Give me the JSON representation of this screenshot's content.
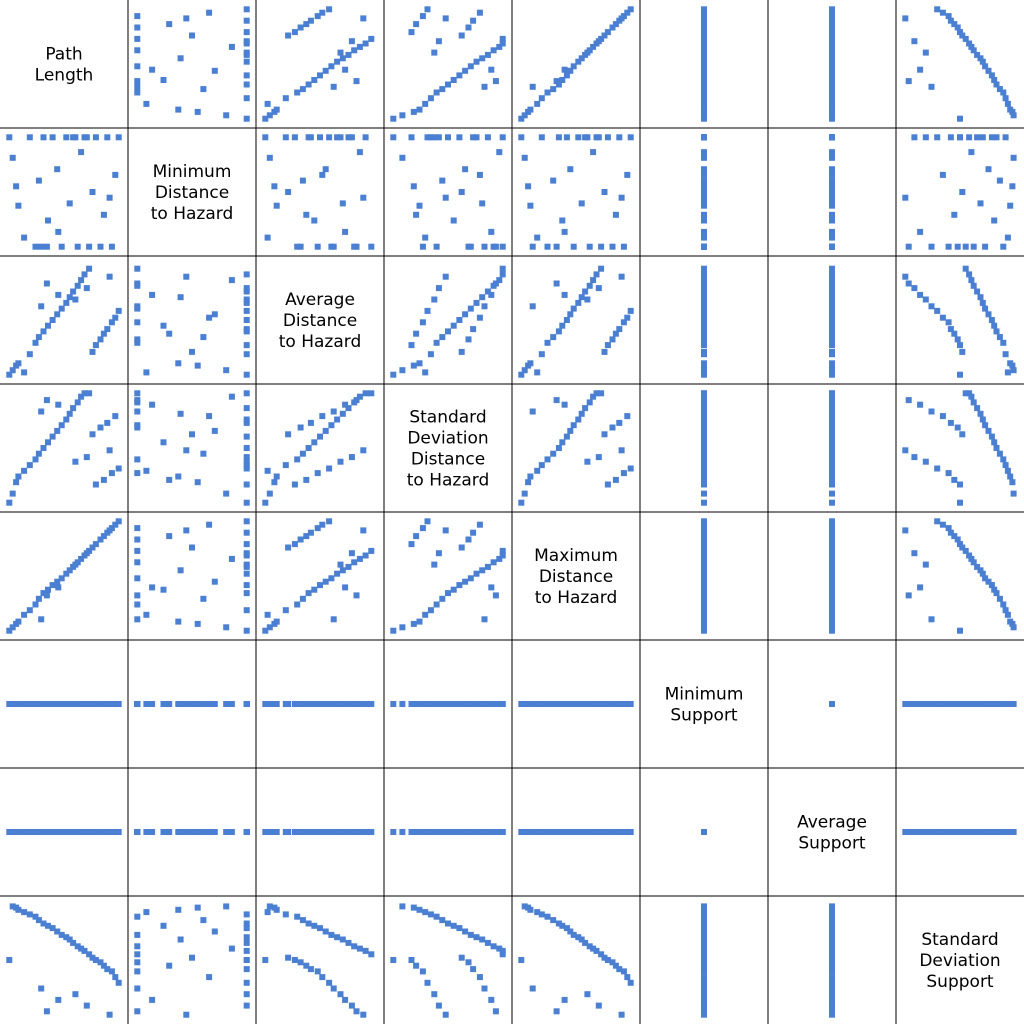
{
  "chart_data": {
    "type": "scatter",
    "variables": [
      "Path Length",
      "Minimum Distance to Hazard",
      "Average Distance to Hazard",
      "Standard Deviation Distance to Hazard",
      "Maximum Distance to Hazard",
      "Minimum Support",
      "Average Support",
      "Standard Deviation Support"
    ],
    "diagonal_labels": [
      [
        "Path",
        "Length"
      ],
      [
        "Minimum",
        "Distance",
        "to Hazard"
      ],
      [
        "Average",
        "Distance",
        "to Hazard"
      ],
      [
        "Standard",
        "Deviation",
        "Distance",
        "to Hazard"
      ],
      [
        "Maximum",
        "Distance",
        "to Hazard"
      ],
      [
        "Minimum",
        "Support"
      ],
      [
        "Average",
        "Support"
      ],
      [
        "Standard",
        "Deviation",
        "Support"
      ]
    ],
    "point_color": "#4a7fd1",
    "grid_color": "#000000",
    "axes_shown": false,
    "normalized_values": [
      [
        0.02,
        0.98,
        0.02,
        0.02,
        0.02,
        0.5,
        0.5,
        0.5
      ],
      [
        0.05,
        0.8,
        0.06,
        0.1,
        0.05,
        0.5,
        0.5,
        0.97
      ],
      [
        0.08,
        0.55,
        0.1,
        0.2,
        0.08,
        0.5,
        0.5,
        0.96
      ],
      [
        0.1,
        0.38,
        0.12,
        0.25,
        0.1,
        0.5,
        0.5,
        0.94
      ],
      [
        0.15,
        0.1,
        0.04,
        0.3,
        0.16,
        0.5,
        0.5,
        0.92
      ],
      [
        0.2,
        0.98,
        0.2,
        0.35,
        0.2,
        0.5,
        0.5,
        0.9
      ],
      [
        0.25,
        0.02,
        0.3,
        0.4,
        0.25,
        0.5,
        0.5,
        0.88
      ],
      [
        0.28,
        0.6,
        0.35,
        0.45,
        0.3,
        0.5,
        0.5,
        0.85
      ],
      [
        0.32,
        0.98,
        0.4,
        0.5,
        0.35,
        0.5,
        0.5,
        0.82
      ],
      [
        0.36,
        0.25,
        0.45,
        0.55,
        0.38,
        0.5,
        0.5,
        0.8
      ],
      [
        0.4,
        0.98,
        0.5,
        0.6,
        0.42,
        0.5,
        0.5,
        0.78
      ],
      [
        0.44,
        0.7,
        0.55,
        0.65,
        0.45,
        0.5,
        0.5,
        0.75
      ],
      [
        0.48,
        0.02,
        0.6,
        0.7,
        0.48,
        0.5,
        0.5,
        0.72
      ],
      [
        0.52,
        0.98,
        0.65,
        0.75,
        0.52,
        0.5,
        0.5,
        0.7
      ],
      [
        0.55,
        0.4,
        0.7,
        0.8,
        0.55,
        0.5,
        0.5,
        0.68
      ],
      [
        0.58,
        0.98,
        0.75,
        0.85,
        0.58,
        0.5,
        0.5,
        0.65
      ],
      [
        0.62,
        0.02,
        0.8,
        0.9,
        0.62,
        0.5,
        0.5,
        0.62
      ],
      [
        0.65,
        0.85,
        0.85,
        0.95,
        0.65,
        0.5,
        0.5,
        0.6
      ],
      [
        0.68,
        0.98,
        0.9,
        0.98,
        0.68,
        0.5,
        0.5,
        0.58
      ],
      [
        0.72,
        0.02,
        0.95,
        0.98,
        0.72,
        0.5,
        0.5,
        0.55
      ],
      [
        0.75,
        0.5,
        0.22,
        0.62,
        0.75,
        0.5,
        0.5,
        0.52
      ],
      [
        0.78,
        0.98,
        0.28,
        0.18,
        0.78,
        0.5,
        0.5,
        0.5
      ],
      [
        0.82,
        0.02,
        0.33,
        0.68,
        0.82,
        0.5,
        0.5,
        0.48
      ],
      [
        0.85,
        0.3,
        0.38,
        0.22,
        0.85,
        0.5,
        0.5,
        0.45
      ],
      [
        0.88,
        0.98,
        0.42,
        0.72,
        0.88,
        0.5,
        0.5,
        0.42
      ],
      [
        0.92,
        0.02,
        0.48,
        0.28,
        0.92,
        0.5,
        0.5,
        0.4
      ],
      [
        0.95,
        0.65,
        0.52,
        0.78,
        0.95,
        0.5,
        0.5,
        0.35
      ],
      [
        0.98,
        0.98,
        0.58,
        0.32,
        0.98,
        0.5,
        0.5,
        0.3
      ],
      [
        0.3,
        0.02,
        0.62,
        0.82,
        0.12,
        0.5,
        0.5,
        0.25
      ],
      [
        0.6,
        0.98,
        0.68,
        0.38,
        0.6,
        0.5,
        0.5,
        0.2
      ],
      [
        0.45,
        0.15,
        0.72,
        0.88,
        0.4,
        0.5,
        0.5,
        0.15
      ],
      [
        0.7,
        0.98,
        0.78,
        0.42,
        0.7,
        0.5,
        0.5,
        0.1
      ],
      [
        0.35,
        0.02,
        0.82,
        0.92,
        0.33,
        0.5,
        0.5,
        0.05
      ],
      [
        0.9,
        0.45,
        0.88,
        0.48,
        0.9,
        0.5,
        0.5,
        0.02
      ]
    ]
  }
}
